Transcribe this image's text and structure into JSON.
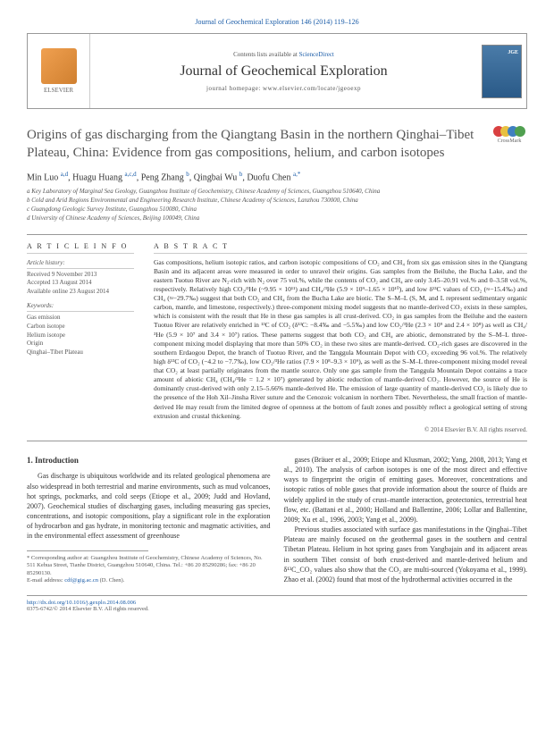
{
  "header": {
    "citation": "Journal of Geochemical Exploration 146 (2014) 119–126",
    "contents_prefix": "Contents lists available at ",
    "contents_link": "ScienceDirect",
    "journal_name": "Journal of Geochemical Exploration",
    "homepage": "journal homepage: www.elsevier.com/locate/jgeoexp",
    "elsevier": "ELSEVIER"
  },
  "article": {
    "title": "Origins of gas discharging from the Qiangtang Basin in the northern Qinghai–Tibet Plateau, China: Evidence from gas compositions, helium, and carbon isotopes",
    "crossmark": "CrossMark",
    "authors_html": "Min Luo a,d, Huagu Huang a,c,d, Peng Zhang b, Qingbai Wu b, Duofu Chen a,*",
    "affiliations": {
      "a": "a Key Laboratory of Marginal Sea Geology, Guangzhou Institute of Geochemistry, Chinese Academy of Sciences, Guangzhou 510640, China",
      "b": "b Cold and Arid Regions Environmental and Engineering Research Institute, Chinese Academy of Sciences, Lanzhou 730000, China",
      "c": "c Guangdong Geologic Survey Institute, Guangzhou 510080, China",
      "d": "d University of Chinese Academy of Sciences, Beijing 100049, China"
    }
  },
  "info": {
    "heading": "A R T I C L E   I N F O",
    "history_label": "Article history:",
    "received": "Received 9 November 2013",
    "accepted": "Accepted 13 August 2014",
    "online": "Available online 23 August 2014",
    "keywords_label": "Keywords:",
    "kw1": "Gas emission",
    "kw2": "Carbon isotope",
    "kw3": "Helium isotope",
    "kw4": "Origin",
    "kw5": "Qinghai–Tibet Plateau"
  },
  "abstract": {
    "heading": "A B S T R A C T",
    "text": "Gas compositions, helium isotopic ratios, and carbon isotopic compositions of CO₂ and CH₄ from six gas emission sites in the Qiangtang Basin and its adjacent areas were measured in order to unravel their origins. Gas samples from the Beiluhe, the Bucha Lake, and the eastern Tuotuo River are N₂-rich with N₂ over 75 vol.%, while the contents of CO₂ and CH₄ are only 3.45–20.91 vol.% and 0–3.58 vol.%, respectively. Relatively high CO₂/³He (~9.95 × 10¹¹) and CH₄/³He (5.9 × 10⁹–1.65 × 10¹⁰), and low δ¹³C values of CO₂ (≈−15.4‰) and CH₄ (≈−29.7‰) suggest that both CO₂ and CH₄ from the Bucha Lake are biotic. The S–M–L (S, M, and L represent sedimentary organic carbon, mantle, and limestone, respectively.) three-component mixing model suggests that no mantle-derived CO₂ exists in these samples, which is consistent with the result that He in these gas samples is all crust-derived. CO₂ in gas samples from the Beiluhe and the eastern Tuotuo River are relatively enriched in ¹³C of CO₂ (δ¹³C: −8.4‰ and −5.5‰) and low CO₂/³He (2.3 × 10⁹ and 2.4 × 10⁸) as well as CH₄/³He (5.9 × 10⁷ and 3.4 × 10⁷) ratios. These patterns suggest that both CO₂ and CH₄ are abiotic, demonstrated by the S–M–L three-component mixing model displaying that more than 50% CO₂ in these two sites are mantle-derived. CO₂-rich gases are discovered in the southern Erdaogou Depot, the branch of Tuotuo River, and the Tanggula Mountain Depot with CO₂ exceeding 96 vol.%. The relatively high δ¹³C of CO₂ (−4.2 to −7.7‰), low CO₂/³He ratios (7.9 × 10⁸–9.3 × 10⁹), as well as the S–M–L three-component mixing model reveal that CO₂ at least partially originates from the mantle source. Only one gas sample from the Tanggula Mountain Depot contains a trace amount of abiotic CH₄ (CH₄/³He = 1.2 × 10⁷) generated by abiotic reduction of mantle-derived CO₂. However, the source of He is dominantly crust-derived with only 2.15–5.66% mantle-derived He. The emission of large quantity of mantle-derived CO₂ is likely due to the presence of the Hoh Xil–Jinsha River suture and the Cenozoic volcanism in northern Tibet. Nevertheless, the small fraction of mantle-derived He may result from the limited degree of openness at the bottom of fault zones and possibly reflect a geological setting of strong extrusion and crustal thickening.",
    "copyright": "© 2014 Elsevier B.V. All rights reserved."
  },
  "body": {
    "section1": "1. Introduction",
    "col1_p1": "Gas discharge is ubiquitous worldwide and its related geological phenomena are also widespread in both terrestrial and marine environments, such as mud volcanoes, hot springs, pockmarks, and cold seeps (Etiope et al., 2009; Judd and Hovland, 2007). Geochemical studies of discharging gases, including measuring gas species, concentrations, and isotopic compositions, play a significant role in the exploration of hydrocarbon and gas hydrate, in monitoring tectonic and magmatic activities, and in the environmental effect assessment of greenhouse",
    "col2_p1": "gases (Bräuer et al., 2009; Etiope and Klusman, 2002; Yang, 2008, 2013; Yang et al., 2010). The analysis of carbon isotopes is one of the most direct and effective ways to fingerprint the origin of emitting gases. Moreover, concentrations and isotopic ratios of noble gases that provide information about the source of fluids are widely applied in the study of crust–mantle interaction, geotectonics, terrestrial heat flow, etc. (Battani et al., 2000; Holland and Ballentine, 2006; Lollar and Ballentine, 2009; Xu et al., 1996, 2003; Yang et al., 2009).",
    "col2_p2": "Previous studies associated with surface gas manifestations in the Qinghai–Tibet Plateau are mainly focused on the geothermal gases in the southern and central Tibetan Plateau. Helium in hot spring gases from Yangbajain and its adjacent areas in southern Tibet consist of both crust-derived and mantle-derived helium and δ¹³C_CO₂ values also show that the CO₂ are multi-sourced (Yokoyama et al., 1999). Zhao et al. (2002) found that most of the hydrothermal activities occurred in the"
  },
  "footnote": {
    "corr": "* Corresponding author at: Guangzhou Institute of Geochemistry, Chinese Academy of Sciences, No. 511 Kehua Street, Tianhe District, Guangzhou 510640, China. Tel.: +86 20 85290286; fax: +86 20 85290130.",
    "email_label": "E-mail address: ",
    "email": "cdf@gig.ac.cn",
    "email_suffix": " (D. Chen)."
  },
  "footer": {
    "doi": "http://dx.doi.org/10.1016/j.gexplo.2014.08.006",
    "issn": "0375-6742/© 2014 Elsevier B.V. All rights reserved."
  }
}
